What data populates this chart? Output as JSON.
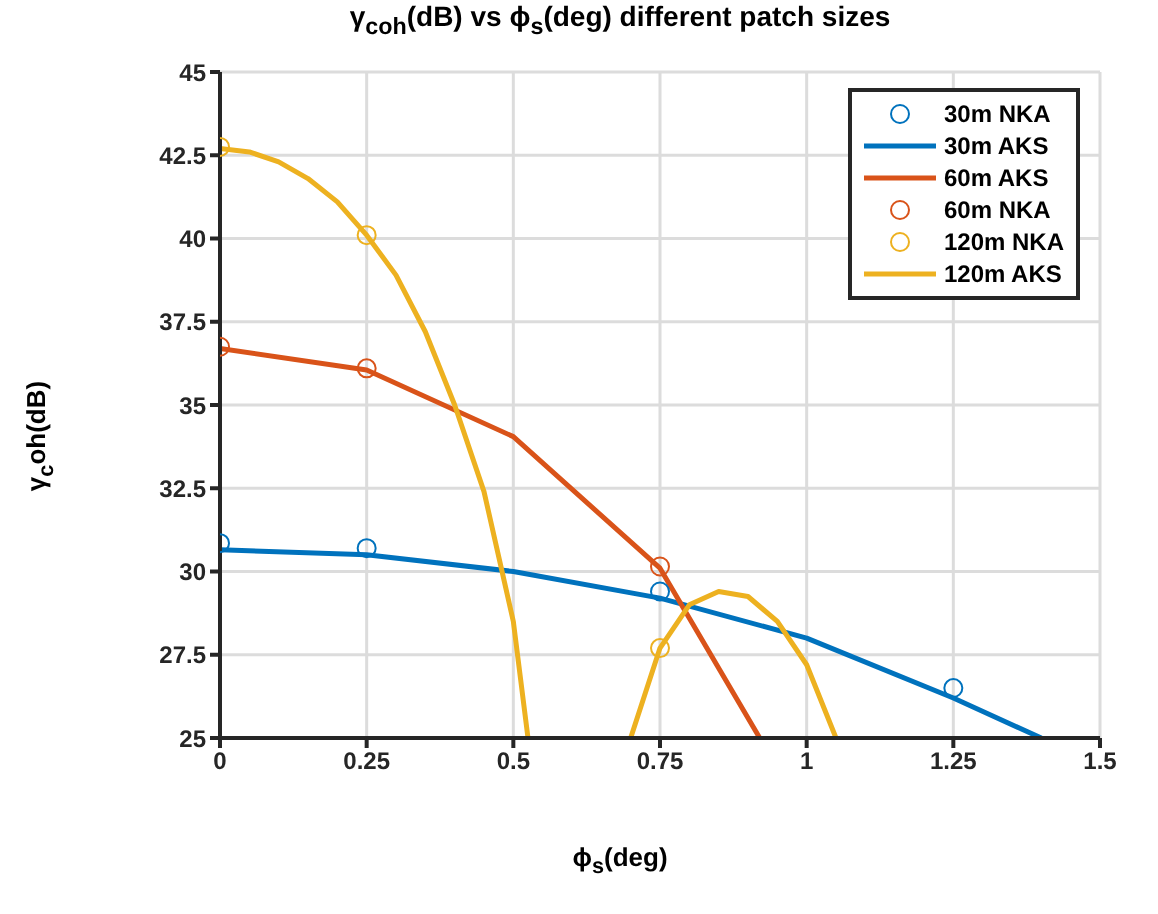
{
  "chart_data": {
    "type": "line",
    "title": "γ$_{coh}$(dB) vs ϕ$_{s}$(deg) different patch sizes",
    "xlabel": "ϕ$_{s}$(deg)",
    "ylabel": "γ$_{c}$oh(dB)",
    "xlim": [
      0,
      1.5
    ],
    "xticks": [
      0,
      0.25,
      0.5,
      0.75,
      1,
      1.25,
      1.5
    ],
    "ylim": [
      25,
      45
    ],
    "yticks": [
      25,
      27.5,
      30,
      32.5,
      35,
      37.5,
      40,
      42.5,
      45
    ],
    "grid": true,
    "legend": "top right",
    "series": [
      {
        "name": "30m NKA",
        "type": "scatter",
        "marker": "circle",
        "color": "#0072bd",
        "x": [
          0,
          0.25,
          0.75,
          1.25
        ],
        "values": [
          30.85,
          30.7,
          29.4,
          26.5
        ]
      },
      {
        "name": "30m AKS",
        "marker": "none",
        "color": "#0072bd",
        "x": [
          0,
          0.25,
          0.5,
          0.75,
          1,
          1.25,
          1.4
        ],
        "values": [
          30.65,
          30.5,
          30.0,
          29.2,
          28.0,
          26.2,
          25
        ]
      },
      {
        "name": "60m AKS",
        "marker": "none",
        "color": "#d95319",
        "x": [
          0,
          0.25,
          0.5,
          0.75,
          0.92
        ],
        "values": [
          36.7,
          36.05,
          34.05,
          30.1,
          25
        ]
      },
      {
        "name": "60m NKA",
        "type": "scatter",
        "marker": "circle",
        "color": "#d95319",
        "x": [
          0,
          0.25,
          0.75
        ],
        "values": [
          36.75,
          36.1,
          30.15
        ]
      },
      {
        "name": "120m NKA",
        "type": "scatter",
        "marker": "circle",
        "color": "#edb120",
        "x": [
          0,
          0.25,
          0.75
        ],
        "values": [
          42.75,
          40.1,
          27.7
        ]
      },
      {
        "name": "120m AKS",
        "marker": "none",
        "color": "#edb120",
        "x": [
          0,
          0.05,
          0.1,
          0.15,
          0.2,
          0.25,
          0.3,
          0.35,
          0.4,
          0.45,
          0.5,
          0.525,
          0.6,
          0.7,
          0.75,
          0.8,
          0.85,
          0.9,
          0.95,
          1.0,
          1.05
        ],
        "values": [
          42.7,
          42.6,
          42.3,
          41.8,
          41.1,
          40.1,
          38.9,
          37.2,
          35.0,
          32.4,
          28.5,
          25,
          null,
          25,
          27.7,
          29.0,
          29.4,
          29.25,
          28.5,
          27.2,
          25
        ]
      }
    ]
  }
}
